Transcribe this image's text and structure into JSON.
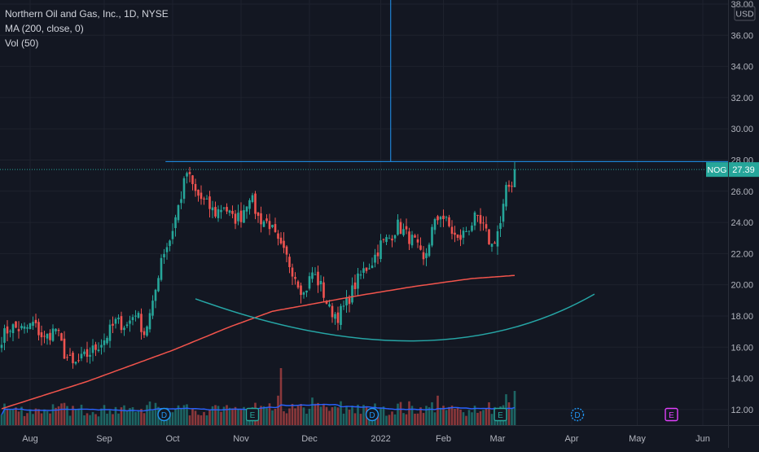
{
  "legend": {
    "title": "Northern Oil and Gas, Inc., 1D, NYSE",
    "ma": "MA (200, close, 0)",
    "vol": "Vol (50)"
  },
  "currency": "USD",
  "price_label": {
    "symbol": "NOG",
    "value": "27.39"
  },
  "colors": {
    "background": "#131722",
    "up": "#26a69a",
    "down": "#ef5350",
    "ma": "#f2544c",
    "vol_ma": "#2962ff",
    "drawing": "#2196f3",
    "arc": "#26a6a6",
    "axis_text": "#b2b5be",
    "earnings": "#26a69a",
    "dividend": "#2196f3",
    "future_earnings": "#e040fb"
  },
  "chart_data": {
    "type": "candlestick",
    "symbol": "NOG",
    "y_axis": {
      "min": 11,
      "max": 38,
      "ticks": [
        "12.00",
        "14.00",
        "16.00",
        "18.00",
        "20.00",
        "22.00",
        "24.00",
        "26.00",
        "28.00",
        "30.00",
        "32.00",
        "34.00",
        "36.00",
        "38.00"
      ]
    },
    "x_axis": {
      "ticks": [
        "Aug",
        "Sep",
        "Oct",
        "Nov",
        "Dec",
        "2022",
        "Feb",
        "Mar",
        "Apr",
        "May",
        "Jun"
      ]
    },
    "last_price": 27.39,
    "resistance_level": 27.9,
    "price_anchors": [
      {
        "d": 0,
        "p": 16.6
      },
      {
        "d": 3,
        "p": 17.3
      },
      {
        "d": 8,
        "p": 17.1
      },
      {
        "d": 11,
        "p": 17.5
      },
      {
        "d": 15,
        "p": 16.5
      },
      {
        "d": 19,
        "p": 17.2
      },
      {
        "d": 22,
        "p": 15.6
      },
      {
        "d": 25,
        "p": 14.8
      },
      {
        "d": 28,
        "p": 15.2
      },
      {
        "d": 32,
        "p": 15.8
      },
      {
        "d": 36,
        "p": 16.5
      },
      {
        "d": 40,
        "p": 17.6
      },
      {
        "d": 44,
        "p": 17.4
      },
      {
        "d": 47,
        "p": 18.3
      },
      {
        "d": 50,
        "p": 16.9
      },
      {
        "d": 53,
        "p": 18.6
      },
      {
        "d": 56,
        "p": 21.8
      },
      {
        "d": 59,
        "p": 22.9
      },
      {
        "d": 62,
        "p": 25.0
      },
      {
        "d": 65,
        "p": 27.2
      },
      {
        "d": 68,
        "p": 25.9
      },
      {
        "d": 71,
        "p": 25.3
      },
      {
        "d": 75,
        "p": 24.6
      },
      {
        "d": 78,
        "p": 25.1
      },
      {
        "d": 81,
        "p": 24.2
      },
      {
        "d": 84,
        "p": 24.4
      },
      {
        "d": 87,
        "p": 25.8
      },
      {
        "d": 90,
        "p": 24.3
      },
      {
        "d": 94,
        "p": 23.9
      },
      {
        "d": 97,
        "p": 22.6
      },
      {
        "d": 100,
        "p": 21.7
      },
      {
        "d": 103,
        "p": 20.6
      },
      {
        "d": 106,
        "p": 19.4
      },
      {
        "d": 109,
        "p": 20.8
      },
      {
        "d": 112,
        "p": 19.9
      },
      {
        "d": 115,
        "p": 18.4
      },
      {
        "d": 118,
        "p": 18.0
      },
      {
        "d": 121,
        "p": 18.8
      },
      {
        "d": 124,
        "p": 20.0
      },
      {
        "d": 127,
        "p": 20.9
      },
      {
        "d": 130,
        "p": 21.5
      },
      {
        "d": 133,
        "p": 22.6
      },
      {
        "d": 136,
        "p": 23.0
      },
      {
        "d": 139,
        "p": 23.8
      },
      {
        "d": 142,
        "p": 23.2
      },
      {
        "d": 145,
        "p": 22.7
      },
      {
        "d": 148,
        "p": 21.4
      },
      {
        "d": 151,
        "p": 23.5
      },
      {
        "d": 154,
        "p": 24.6
      },
      {
        "d": 157,
        "p": 23.7
      },
      {
        "d": 160,
        "p": 22.8
      },
      {
        "d": 163,
        "p": 23.5
      },
      {
        "d": 166,
        "p": 24.2
      },
      {
        "d": 169,
        "p": 23.6
      },
      {
        "d": 172,
        "p": 22.5
      },
      {
        "d": 175,
        "p": 23.9
      },
      {
        "d": 177,
        "p": 26.0
      },
      {
        "d": 179,
        "p": 26.6
      },
      {
        "d": 180,
        "p": 27.39
      }
    ],
    "ma_200": [
      {
        "d": 0,
        "p": 12.05
      },
      {
        "d": 30,
        "p": 13.8
      },
      {
        "d": 60,
        "p": 15.8
      },
      {
        "d": 80,
        "p": 17.3
      },
      {
        "d": 95,
        "p": 18.3
      },
      {
        "d": 110,
        "p": 18.8
      },
      {
        "d": 125,
        "p": 19.3
      },
      {
        "d": 145,
        "p": 19.9
      },
      {
        "d": 165,
        "p": 20.4
      },
      {
        "d": 180,
        "p": 20.6
      }
    ],
    "rounding_bottom_arc": {
      "start": {
        "d": 68,
        "p": 19.1
      },
      "bottom": {
        "d": 145,
        "p": 16.4
      },
      "end": {
        "d": 208,
        "p": 19.4
      }
    },
    "volume_avg_level": 0.3
  },
  "events": [
    {
      "type": "D",
      "label": "D"
    },
    {
      "type": "E",
      "label": "E"
    },
    {
      "type": "D",
      "label": "D"
    },
    {
      "type": "E",
      "label": "E"
    },
    {
      "type": "D",
      "label": "D"
    },
    {
      "type": "E",
      "label": "E"
    }
  ]
}
